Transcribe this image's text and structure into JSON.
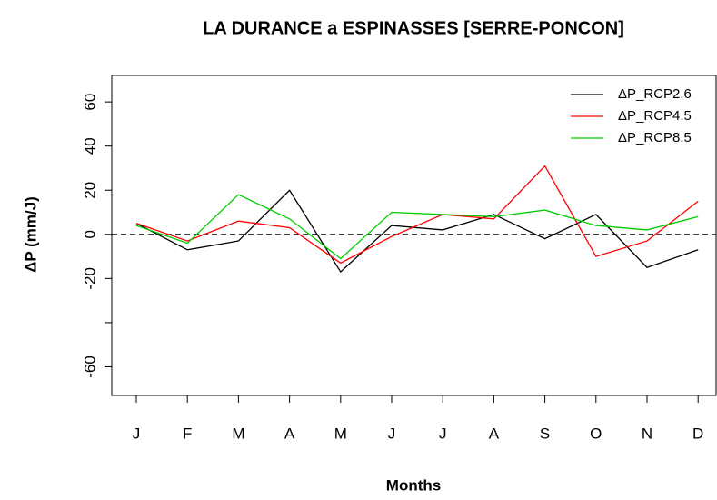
{
  "chart_data": {
    "type": "line",
    "title": "LA DURANCE a ESPINASSES [SERRE-PONCON]",
    "xlabel": "Months",
    "ylabel": "ΔP (mm/J)",
    "categories": [
      "J",
      "F",
      "M",
      "A",
      "M",
      "J",
      "J",
      "A",
      "S",
      "O",
      "N",
      "D"
    ],
    "series": [
      {
        "name": "ΔP_RCP2.6",
        "color": "#000000",
        "values": [
          5,
          -7,
          -3,
          20,
          -17,
          4,
          2,
          9,
          -2,
          9,
          -15,
          -7
        ]
      },
      {
        "name": "ΔP_RCP4.5",
        "color": "#ff0000",
        "values": [
          5,
          -3,
          6,
          3,
          -13,
          -1,
          9,
          7,
          31,
          -10,
          -3,
          15
        ]
      },
      {
        "name": "ΔP_RCP8.5",
        "color": "#00cc00",
        "values": [
          4,
          -4,
          18,
          7,
          -11,
          10,
          9,
          8,
          11,
          4,
          2,
          8
        ]
      }
    ],
    "ylim": [
      -73,
      72
    ],
    "yticks": [
      -60,
      {
        "value": -40,
        "label": null
      },
      -20,
      0,
      20,
      40,
      60
    ],
    "reference_line": 0,
    "legend": "top-right"
  }
}
